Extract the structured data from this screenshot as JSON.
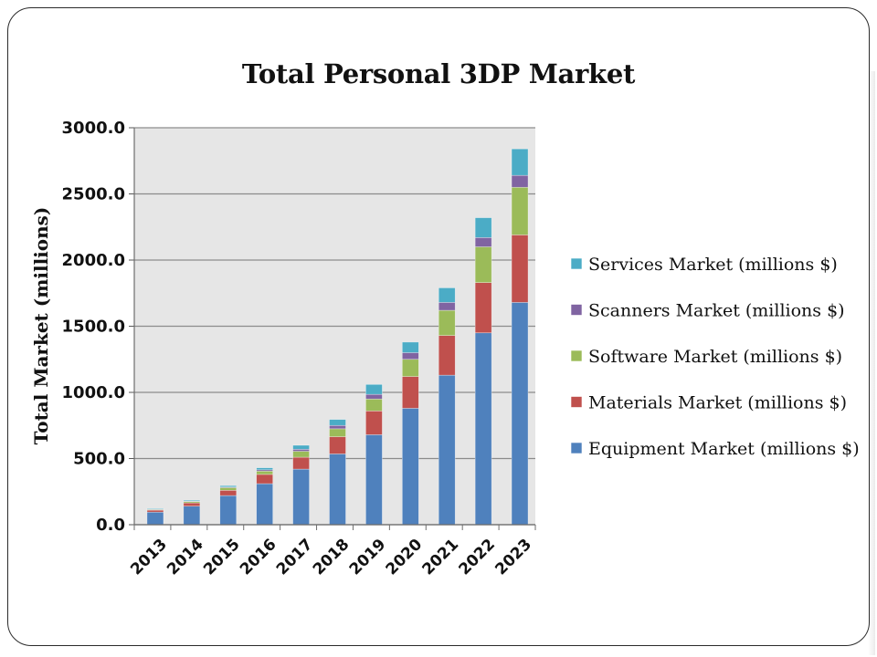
{
  "chart_data": {
    "type": "bar",
    "stacked": true,
    "title": "Total Personal 3DP Market",
    "xlabel": "",
    "ylabel": "Total Market (millions)",
    "ylim": [
      0,
      3000
    ],
    "yticks": [
      "0.0",
      "500.0",
      "1000.0",
      "1500.0",
      "2000.0",
      "2500.0",
      "3000.0"
    ],
    "grid": "horizontal",
    "legend_position": "right",
    "categories": [
      "2013",
      "2014",
      "2015",
      "2016",
      "2017",
      "2018",
      "2019",
      "2020",
      "2021",
      "2022",
      "2023"
    ],
    "series": [
      {
        "name": "Equipment Market (millions $)",
        "color": "#4f81bd",
        "values": [
          95,
          140,
          220,
          310,
          420,
          535,
          680,
          880,
          1130,
          1450,
          1680
        ]
      },
      {
        "name": "Materials Market (millions $)",
        "color": "#c0504d",
        "values": [
          15,
          25,
          40,
          70,
          90,
          130,
          180,
          240,
          300,
          380,
          510
        ]
      },
      {
        "name": "Software Market (millions $)",
        "color": "#9bbb59",
        "values": [
          5,
          10,
          20,
          25,
          45,
          60,
          90,
          130,
          190,
          270,
          360
        ]
      },
      {
        "name": "Scanners Market (millions $)",
        "color": "#8064a2",
        "values": [
          2,
          3,
          5,
          10,
          15,
          25,
          35,
          50,
          60,
          70,
          90
        ]
      },
      {
        "name": "Services Market (millions $)",
        "color": "#4bacc6",
        "values": [
          5,
          7,
          10,
          15,
          30,
          45,
          75,
          80,
          110,
          150,
          200
        ]
      }
    ]
  }
}
